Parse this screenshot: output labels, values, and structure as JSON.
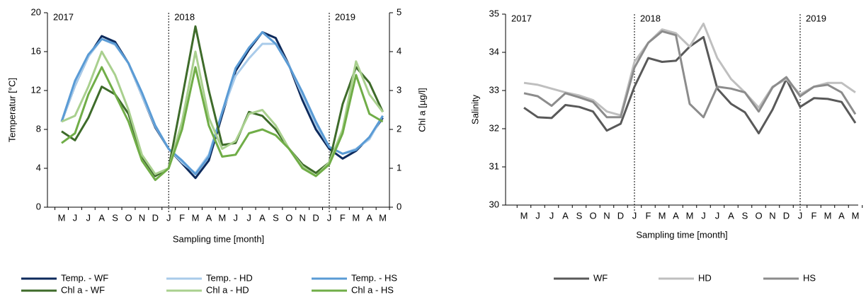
{
  "chart_data": [
    {
      "type": "line",
      "x_label": "Sampling time [month]",
      "y_label": "Temperatur [°C]",
      "y2_label": "Chl a [µg/l]",
      "annotations": [
        "2017",
        "2018",
        "2019"
      ],
      "categories": [
        "M",
        "J",
        "J",
        "A",
        "S",
        "O",
        "N",
        "D",
        "J",
        "F",
        "M",
        "A",
        "M",
        "J",
        "J",
        "A",
        "S",
        "O",
        "N",
        "D",
        "J",
        "F",
        "M",
        "A",
        "M"
      ],
      "ylim": [
        0,
        20
      ],
      "yticks": [
        0,
        4,
        8,
        12,
        16,
        20
      ],
      "y2lim": [
        0,
        5
      ],
      "y2ticks": [
        0,
        1,
        2,
        3,
        4,
        5
      ],
      "series": [
        {
          "name": "Temp. - WF",
          "color": "#0d2a5c",
          "values": [
            8.8,
            12.5,
            15.5,
            17.6,
            17.0,
            14.8,
            11.5,
            8.2,
            6.0,
            4.5,
            3.0,
            4.8,
            9.5,
            14.0,
            16.2,
            18.0,
            17.4,
            14.6,
            11.0,
            8.0,
            6.0,
            5.0,
            5.8,
            7.2,
            9.2
          ]
        },
        {
          "name": "Temp. - HD",
          "color": "#a9cbea",
          "values": [
            8.8,
            12.5,
            15.5,
            17.3,
            16.7,
            14.8,
            11.5,
            8.3,
            6.0,
            4.6,
            3.5,
            5.4,
            9.8,
            13.5,
            15.3,
            16.8,
            16.8,
            14.6,
            11.5,
            8.5,
            6.2,
            5.5,
            6.0,
            7.0,
            9.4
          ]
        },
        {
          "name": "Temp. - HS",
          "color": "#5a9bd5",
          "values": [
            8.8,
            13.0,
            15.7,
            17.3,
            16.8,
            14.8,
            11.8,
            8.4,
            6.0,
            4.8,
            3.4,
            5.2,
            9.8,
            14.3,
            16.4,
            18.0,
            16.8,
            14.5,
            11.8,
            8.8,
            6.2,
            5.5,
            5.9,
            7.2,
            9.4
          ]
        },
        {
          "name": "Chl a - WF",
          "color": "#3e6b2a",
          "axis": "y2",
          "values": [
            1.95,
            1.72,
            2.3,
            3.1,
            2.9,
            2.4,
            1.3,
            0.8,
            1.0,
            2.8,
            4.65,
            3.0,
            1.6,
            1.65,
            2.45,
            2.35,
            2.0,
            1.5,
            1.1,
            0.88,
            1.15,
            2.65,
            3.6,
            3.2,
            2.45
          ]
        },
        {
          "name": "Chl a - HD",
          "color": "#a9d08e",
          "axis": "y2",
          "values": [
            2.2,
            2.35,
            3.1,
            4.0,
            3.4,
            2.5,
            1.35,
            0.85,
            1.0,
            2.2,
            4.0,
            2.3,
            1.5,
            1.7,
            2.4,
            2.5,
            2.1,
            1.5,
            1.05,
            0.8,
            1.15,
            2.0,
            3.75,
            2.9,
            2.45
          ]
        },
        {
          "name": "Chl a - HS",
          "color": "#70ad47",
          "axis": "y2",
          "values": [
            1.65,
            1.9,
            2.9,
            3.6,
            2.9,
            2.2,
            1.2,
            0.7,
            1.0,
            2.0,
            3.6,
            2.1,
            1.3,
            1.35,
            1.9,
            2.0,
            1.85,
            1.5,
            1.0,
            0.8,
            1.1,
            1.9,
            3.4,
            2.4,
            2.2
          ]
        }
      ]
    },
    {
      "type": "line",
      "x_label": "Sampling time [month]",
      "y_label": "Salinity",
      "annotations": [
        "2017",
        "2018",
        "2019"
      ],
      "categories": [
        "M",
        "J",
        "J",
        "A",
        "S",
        "O",
        "N",
        "D",
        "J",
        "F",
        "M",
        "A",
        "M",
        "J",
        "J",
        "A",
        "S",
        "O",
        "N",
        "D",
        "J",
        "F",
        "M",
        "A",
        "M"
      ],
      "ylim": [
        30,
        35
      ],
      "yticks": [
        30,
        31,
        32,
        33,
        34,
        35
      ],
      "series": [
        {
          "name": "WF",
          "color": "#595959",
          "values": [
            32.55,
            32.3,
            32.28,
            32.62,
            32.57,
            32.45,
            31.95,
            32.13,
            33.1,
            33.85,
            33.75,
            33.78,
            34.15,
            34.4,
            33.05,
            32.65,
            32.43,
            31.88,
            32.5,
            33.3,
            32.57,
            32.8,
            32.78,
            32.7,
            32.15
          ]
        },
        {
          "name": "HD",
          "color": "#bfbfbf",
          "values": [
            33.2,
            33.15,
            33.05,
            32.95,
            32.87,
            32.75,
            32.45,
            32.35,
            33.75,
            34.25,
            34.6,
            34.5,
            34.15,
            34.75,
            33.85,
            33.3,
            32.95,
            32.55,
            33.1,
            33.3,
            32.9,
            33.1,
            33.2,
            33.2,
            32.95
          ]
        },
        {
          "name": "HS",
          "color": "#8c8c8c",
          "values": [
            32.93,
            32.85,
            32.6,
            32.93,
            32.82,
            32.7,
            32.3,
            32.3,
            33.6,
            34.25,
            34.55,
            34.45,
            32.65,
            32.3,
            33.1,
            33.05,
            32.95,
            32.45,
            33.08,
            33.35,
            32.85,
            33.1,
            33.15,
            32.95,
            32.38
          ]
        }
      ]
    }
  ]
}
